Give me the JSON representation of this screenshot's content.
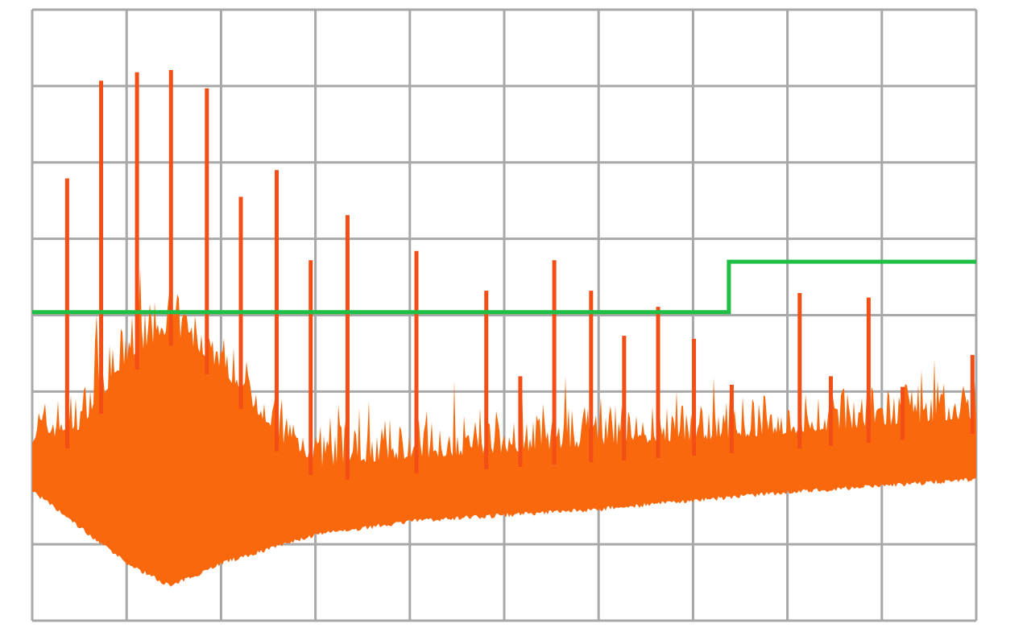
{
  "chart_data": {
    "type": "line",
    "title": "",
    "xlabel": "",
    "ylabel": "",
    "xlim": [
      0,
      10
    ],
    "ylim": [
      0,
      8
    ],
    "grid": true,
    "grid_divisions": {
      "x": 10,
      "y": 8
    },
    "colors": {
      "signal": "#f9680c",
      "spike": "#f24e16",
      "limit": "#1fbf45",
      "grid": "#a8a8a8"
    },
    "limit_line": {
      "points": [
        [
          0,
          4.04
        ],
        [
          7.38,
          4.04
        ],
        [
          7.38,
          4.7
        ],
        [
          10,
          4.7
        ]
      ]
    },
    "spikes": {
      "x": [
        0.37,
        0.73,
        1.11,
        1.47,
        1.85,
        2.21,
        2.59,
        2.95,
        3.34,
        4.07,
        4.81,
        5.17,
        5.53,
        5.92,
        6.27,
        6.63,
        7.01,
        7.41,
        8.13,
        8.46,
        8.86,
        9.22,
        9.96
      ],
      "y": [
        5.79,
        7.07,
        7.18,
        7.21,
        6.97,
        5.55,
        5.9,
        4.72,
        5.31,
        4.84,
        4.32,
        3.2,
        4.72,
        4.32,
        3.73,
        4.11,
        3.69,
        3.09,
        4.29,
        3.2,
        4.23,
        3.06,
        3.48
      ]
    },
    "noise_upper": {
      "x": [
        0,
        0.5,
        1.0,
        1.47,
        2.0,
        2.65,
        3.07,
        4.0,
        6.0,
        8.0,
        10
      ],
      "y": [
        2.43,
        2.6,
        3.49,
        3.9,
        3.38,
        2.43,
        2.12,
        2.22,
        2.38,
        2.54,
        2.75
      ]
    },
    "noise_lower": {
      "x": [
        0,
        1.0,
        1.47,
        2.0,
        3.0,
        4.0,
        6.0,
        8.0,
        10
      ],
      "y": [
        1.7,
        0.75,
        0.45,
        0.75,
        1.12,
        1.3,
        1.46,
        1.68,
        1.85
      ]
    }
  }
}
